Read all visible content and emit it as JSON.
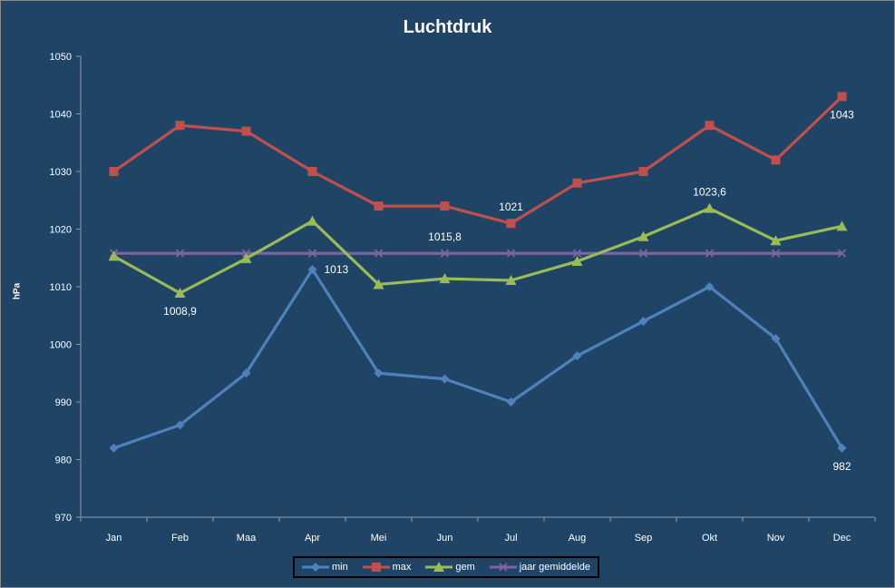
{
  "chart_data": {
    "type": "line",
    "title": "Luchtdruk",
    "ylabel": "hPa",
    "xlabel": "",
    "ylim": [
      970,
      1050
    ],
    "yticks": [
      970,
      980,
      990,
      1000,
      1010,
      1020,
      1030,
      1040,
      1050
    ],
    "ytick_labels": [
      "970",
      "980",
      "990",
      "1000",
      "1010",
      "1020",
      "1030",
      "1040",
      "1050"
    ],
    "categories": [
      "Jan",
      "Feb",
      "Maa",
      "Apr",
      "Mei",
      "Jun",
      "Jul",
      "Aug",
      "Sep",
      "Okt",
      "Nov",
      "Dec"
    ],
    "grid": false,
    "legend_position": "bottom",
    "background": "#1f4466",
    "series": [
      {
        "name": "min",
        "color": "#4f81bd",
        "marker": "diamond",
        "values": [
          982,
          986,
          995,
          1013,
          995,
          994,
          990,
          998,
          1004,
          1010,
          1001,
          982
        ]
      },
      {
        "name": "max",
        "color": "#c0504d",
        "marker": "square",
        "values": [
          1030,
          1038,
          1037,
          1030,
          1024,
          1024,
          1021,
          1028,
          1030,
          1038,
          1032,
          1043
        ]
      },
      {
        "name": "gem",
        "color": "#9bbb59",
        "marker": "triangle",
        "values": [
          1015.3,
          1008.9,
          1014.9,
          1021.4,
          1010.4,
          1011.4,
          1011.1,
          1014.4,
          1018.7,
          1023.6,
          1018.0,
          1020.5
        ]
      },
      {
        "name": "jaar gemiddelde",
        "color": "#8064a2",
        "marker": "x",
        "values": [
          1015.8,
          1015.8,
          1015.8,
          1015.8,
          1015.8,
          1015.8,
          1015.8,
          1015.8,
          1015.8,
          1015.8,
          1015.8,
          1015.8
        ]
      }
    ],
    "annotations": [
      {
        "series": 0,
        "index": 3,
        "text": "1013",
        "anchor": "right"
      },
      {
        "series": 0,
        "index": 11,
        "text": "982",
        "anchor": "below"
      },
      {
        "series": 1,
        "index": 6,
        "text": "1021",
        "anchor": "above"
      },
      {
        "series": 1,
        "index": 11,
        "text": "1043",
        "anchor": "below"
      },
      {
        "series": 2,
        "index": 1,
        "text": "1008,9",
        "anchor": "below"
      },
      {
        "series": 2,
        "index": 9,
        "text": "1023,6",
        "anchor": "above"
      },
      {
        "series": 3,
        "index": 5,
        "text": "1015,8",
        "anchor": "above"
      }
    ]
  }
}
